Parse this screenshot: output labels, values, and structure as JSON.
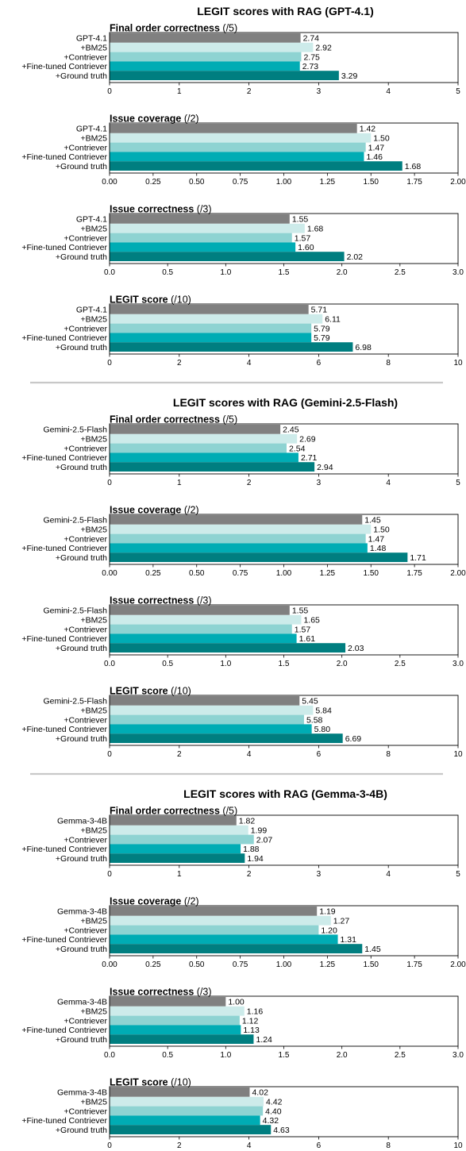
{
  "colors": {
    "base": "#808080",
    "bm25": "#cdebea",
    "contriever": "#8ed3d2",
    "finetuned": "#00acb4",
    "ground": "#007e80",
    "divider": "#c8c8c8"
  },
  "chart_data": [
    {
      "section_title": "LEGIT scores with RAG (GPT-4.1)",
      "categories": [
        "GPT-4.1",
        "+BM25",
        "+Contriever",
        "+Fine-tuned Contriever",
        "+Ground truth"
      ],
      "panels": [
        {
          "type": "bar",
          "title_bold": "Final order correctness",
          "title_suffix": " (/5)",
          "values": [
            2.74,
            2.92,
            2.75,
            2.73,
            3.29
          ],
          "value_labels": [
            "2.74",
            "2.92",
            "2.75",
            "2.73",
            "3.29"
          ],
          "xlim": [
            0,
            5
          ],
          "ticks": [
            "0",
            "1",
            "2",
            "3",
            "4",
            "5"
          ],
          "tick_values": [
            0,
            1,
            2,
            3,
            4,
            5
          ]
        },
        {
          "type": "bar",
          "title_bold": "Issue coverage",
          "title_suffix": " (/2)",
          "values": [
            1.42,
            1.5,
            1.47,
            1.46,
            1.68
          ],
          "value_labels": [
            "1.42",
            "1.50",
            "1.47",
            "1.46",
            "1.68"
          ],
          "xlim": [
            0,
            2
          ],
          "ticks": [
            "0.00",
            "0.25",
            "0.50",
            "0.75",
            "1.00",
            "1.25",
            "1.50",
            "1.75",
            "2.00"
          ],
          "tick_values": [
            0,
            0.25,
            0.5,
            0.75,
            1.0,
            1.25,
            1.5,
            1.75,
            2.0
          ]
        },
        {
          "type": "bar",
          "title_bold": "Issue correctness",
          "title_suffix": " (/3)",
          "values": [
            1.55,
            1.68,
            1.57,
            1.6,
            2.02
          ],
          "value_labels": [
            "1.55",
            "1.68",
            "1.57",
            "1.60",
            "2.02"
          ],
          "xlim": [
            0,
            3
          ],
          "ticks": [
            "0.0",
            "0.5",
            "1.0",
            "1.5",
            "2.0",
            "2.5",
            "3.0"
          ],
          "tick_values": [
            0,
            0.5,
            1.0,
            1.5,
            2.0,
            2.5,
            3.0
          ]
        },
        {
          "type": "bar",
          "title_bold": "LEGIT score",
          "title_suffix": " (/10)",
          "values": [
            5.71,
            6.11,
            5.79,
            5.79,
            6.98
          ],
          "value_labels": [
            "5.71",
            "6.11",
            "5.79",
            "5.79",
            "6.98"
          ],
          "xlim": [
            0,
            10
          ],
          "ticks": [
            "0",
            "2",
            "4",
            "6",
            "8",
            "10"
          ],
          "tick_values": [
            0,
            2,
            4,
            6,
            8,
            10
          ]
        }
      ]
    },
    {
      "section_title": "LEGIT scores with RAG (Gemini-2.5-Flash)",
      "categories": [
        "Gemini-2.5-Flash",
        "+BM25",
        "+Contriever",
        "+Fine-tuned Contriever",
        "+Ground truth"
      ],
      "panels": [
        {
          "type": "bar",
          "title_bold": "Final order correctness",
          "title_suffix": " (/5)",
          "values": [
            2.45,
            2.69,
            2.54,
            2.71,
            2.94
          ],
          "value_labels": [
            "2.45",
            "2.69",
            "2.54",
            "2.71",
            "2.94"
          ],
          "xlim": [
            0,
            5
          ],
          "ticks": [
            "0",
            "1",
            "2",
            "3",
            "4",
            "5"
          ],
          "tick_values": [
            0,
            1,
            2,
            3,
            4,
            5
          ]
        },
        {
          "type": "bar",
          "title_bold": "Issue coverage",
          "title_suffix": " (/2)",
          "values": [
            1.45,
            1.5,
            1.47,
            1.48,
            1.71
          ],
          "value_labels": [
            "1.45",
            "1.50",
            "1.47",
            "1.48",
            "1.71"
          ],
          "xlim": [
            0,
            2
          ],
          "ticks": [
            "0.00",
            "0.25",
            "0.50",
            "0.75",
            "1.00",
            "1.25",
            "1.50",
            "1.75",
            "2.00"
          ],
          "tick_values": [
            0,
            0.25,
            0.5,
            0.75,
            1.0,
            1.25,
            1.5,
            1.75,
            2.0
          ]
        },
        {
          "type": "bar",
          "title_bold": "Issue correctness",
          "title_suffix": " (/3)",
          "values": [
            1.55,
            1.65,
            1.57,
            1.61,
            2.03
          ],
          "value_labels": [
            "1.55",
            "1.65",
            "1.57",
            "1.61",
            "2.03"
          ],
          "xlim": [
            0,
            3
          ],
          "ticks": [
            "0.0",
            "0.5",
            "1.0",
            "1.5",
            "2.0",
            "2.5",
            "3.0"
          ],
          "tick_values": [
            0,
            0.5,
            1.0,
            1.5,
            2.0,
            2.5,
            3.0
          ]
        },
        {
          "type": "bar",
          "title_bold": "LEGIT score",
          "title_suffix": " (/10)",
          "values": [
            5.45,
            5.84,
            5.58,
            5.8,
            6.69
          ],
          "value_labels": [
            "5.45",
            "5.84",
            "5.58",
            "5.80",
            "6.69"
          ],
          "xlim": [
            0,
            10
          ],
          "ticks": [
            "0",
            "2",
            "4",
            "6",
            "8",
            "10"
          ],
          "tick_values": [
            0,
            2,
            4,
            6,
            8,
            10
          ]
        }
      ]
    },
    {
      "section_title": "LEGIT scores with RAG (Gemma-3-4B)",
      "categories": [
        "Gemma-3-4B",
        "+BM25",
        "+Contriever",
        "+Fine-tuned Contriever",
        "+Ground truth"
      ],
      "panels": [
        {
          "type": "bar",
          "title_bold": "Final order correctness",
          "title_suffix": " (/5)",
          "values": [
            1.82,
            1.99,
            2.07,
            1.88,
            1.94
          ],
          "value_labels": [
            "1.82",
            "1.99",
            "2.07",
            "1.88",
            "1.94"
          ],
          "xlim": [
            0,
            5
          ],
          "ticks": [
            "0",
            "1",
            "2",
            "3",
            "4",
            "5"
          ],
          "tick_values": [
            0,
            1,
            2,
            3,
            4,
            5
          ]
        },
        {
          "type": "bar",
          "title_bold": "Issue coverage",
          "title_suffix": " (/2)",
          "values": [
            1.19,
            1.27,
            1.2,
            1.31,
            1.45
          ],
          "value_labels": [
            "1.19",
            "1.27",
            "1.20",
            "1.31",
            "1.45"
          ],
          "xlim": [
            0,
            2
          ],
          "ticks": [
            "0.00",
            "0.25",
            "0.50",
            "0.75",
            "1.00",
            "1.25",
            "1.50",
            "1.75",
            "2.00"
          ],
          "tick_values": [
            0,
            0.25,
            0.5,
            0.75,
            1.0,
            1.25,
            1.5,
            1.75,
            2.0
          ]
        },
        {
          "type": "bar",
          "title_bold": "Issue correctness",
          "title_suffix": " (/3)",
          "values": [
            1.0,
            1.16,
            1.12,
            1.13,
            1.24
          ],
          "value_labels": [
            "1.00",
            "1.16",
            "1.12",
            "1.13",
            "1.24"
          ],
          "xlim": [
            0,
            3
          ],
          "ticks": [
            "0.0",
            "0.5",
            "1.0",
            "1.5",
            "2.0",
            "2.5",
            "3.0"
          ],
          "tick_values": [
            0,
            0.5,
            1.0,
            1.5,
            2.0,
            2.5,
            3.0
          ]
        },
        {
          "type": "bar",
          "title_bold": "LEGIT score",
          "title_suffix": " (/10)",
          "values": [
            4.02,
            4.42,
            4.4,
            4.32,
            4.63
          ],
          "value_labels": [
            "4.02",
            "4.42",
            "4.40",
            "4.32",
            "4.63"
          ],
          "xlim": [
            0,
            10
          ],
          "ticks": [
            "0",
            "2",
            "4",
            "6",
            "8",
            "10"
          ],
          "tick_values": [
            0,
            2,
            4,
            6,
            8,
            10
          ]
        }
      ]
    }
  ]
}
